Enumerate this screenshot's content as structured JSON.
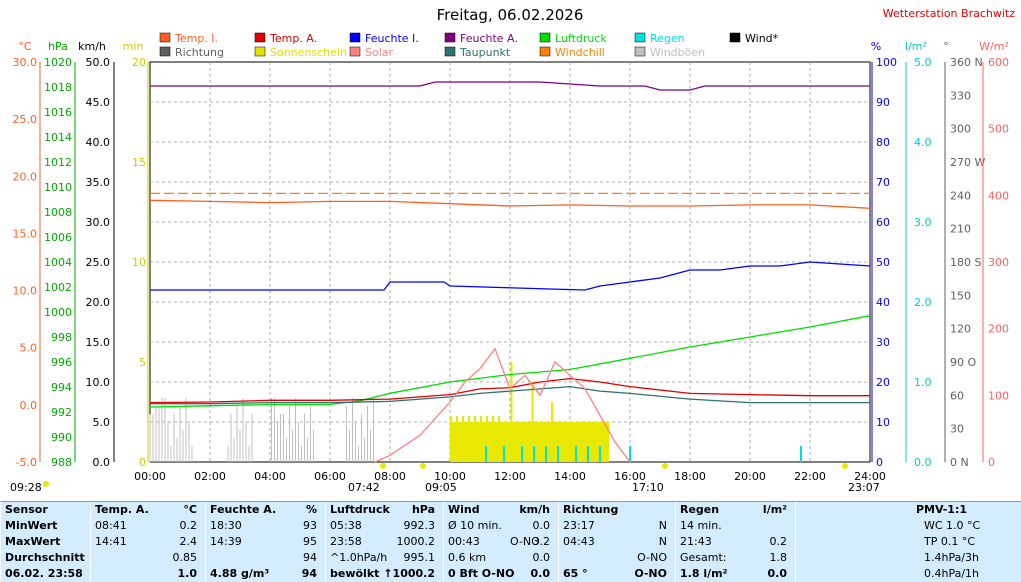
{
  "title": "Freitag, 06.02.2026",
  "station": "Wetterstation Brachwitz",
  "legend": [
    {
      "label": "Temp. I.",
      "color": "#ff6020"
    },
    {
      "label": "Temp. A.",
      "color": "#e00000"
    },
    {
      "label": "Feuchte I.",
      "color": "#0000ff"
    },
    {
      "label": "Feuchte A.",
      "color": "#800080"
    },
    {
      "label": "Luftdruck",
      "color": "#00dd00"
    },
    {
      "label": "Regen",
      "color": "#00e0e0"
    },
    {
      "label": "Wind*",
      "color": "#000000"
    },
    {
      "label": "Richtung",
      "color": "#606060"
    },
    {
      "label": "Sonnenschein",
      "color": "#e0e000"
    },
    {
      "label": "Solar",
      "color": "#ff8080"
    },
    {
      "label": "Taupunkt",
      "color": "#307070"
    },
    {
      "label": "Windchill",
      "color": "#ff8000"
    },
    {
      "label": "Windböen",
      "color": "#c0c0c0"
    }
  ],
  "axis_units": {
    "temp": "°C",
    "press": "hPa",
    "wind": "km/h",
    "sun": "min",
    "hum": "%",
    "rain": "l/m²",
    "dir": "°",
    "solar": "W/m²"
  },
  "chart_data": {
    "type": "line",
    "x_ticks": [
      "00:00",
      "02:00",
      "04:00",
      "06:00",
      "08:00",
      "10:00",
      "12:00",
      "14:00",
      "16:00",
      "18:00",
      "20:00",
      "22:00",
      "24:00"
    ],
    "axes": {
      "temp": {
        "range": [
          -5,
          30
        ],
        "ticks": [
          "30.0",
          "25.0",
          "20.0",
          "15.0",
          "10.0",
          "5.0",
          "0.0",
          "-5.0"
        ]
      },
      "press": {
        "range": [
          988,
          1020
        ],
        "ticks": [
          "1020",
          "1018",
          "1016",
          "1014",
          "1012",
          "1010",
          "1008",
          "1006",
          "1004",
          "1002",
          "1000",
          "998",
          "996",
          "994",
          "992",
          "990",
          "988"
        ]
      },
      "wind": {
        "range": [
          0,
          50
        ],
        "ticks": [
          "50.0",
          "45.0",
          "40.0",
          "35.0",
          "30.0",
          "25.0",
          "20.0",
          "15.0",
          "10.0",
          "5.0",
          "0.0"
        ]
      },
      "sun": {
        "range": [
          0,
          20
        ],
        "ticks": [
          "20",
          "15",
          "10",
          "5",
          "0"
        ]
      },
      "hum": {
        "range": [
          0,
          100
        ],
        "ticks": [
          "100",
          "90",
          "80",
          "70",
          "60",
          "50",
          "40",
          "30",
          "20",
          "10",
          "0"
        ]
      },
      "rain": {
        "range": [
          0,
          5
        ],
        "ticks": [
          "5.0",
          "4.0",
          "3.0",
          "2.0",
          "1.0",
          "0.0"
        ]
      },
      "dir": {
        "range": [
          0,
          360
        ],
        "ticks": [
          "360 N",
          "330",
          "300",
          "270 W",
          "240",
          "210",
          "180 S",
          "150",
          "120",
          "90 O",
          "60",
          "30",
          "0 N"
        ]
      },
      "solar": {
        "range": [
          0,
          600
        ],
        "ticks": [
          "600",
          "500",
          "400",
          "300",
          "200",
          "100",
          "0"
        ]
      }
    },
    "series": [
      {
        "name": "Feuchte A.",
        "axis": "hum",
        "color": "#800080",
        "x": [
          0,
          9,
          9.5,
          12,
          13,
          15,
          16.5,
          17,
          18,
          18.5,
          19,
          20,
          24
        ],
        "y": [
          94,
          94,
          95,
          95,
          95,
          94,
          94,
          93,
          93,
          94,
          94,
          94,
          94
        ]
      },
      {
        "name": "Temp. I.",
        "axis": "temp",
        "color": "#ff6020",
        "x": [
          0,
          2,
          4,
          6,
          8,
          10,
          12,
          14,
          16,
          18,
          20,
          22,
          24
        ],
        "y": [
          17.9,
          17.8,
          17.7,
          17.8,
          17.8,
          17.6,
          17.4,
          17.5,
          17.4,
          17.4,
          17.5,
          17.5,
          17.2
        ]
      },
      {
        "name": "Windchill",
        "axis": "temp",
        "color": "#ff8000",
        "x": [
          0,
          24
        ],
        "y": [
          18.5,
          18.5
        ]
      },
      {
        "name": "Feuchte I.",
        "axis": "hum",
        "color": "#0000ff",
        "x": [
          0,
          7.8,
          8,
          9.8,
          10,
          14.5,
          15,
          16,
          17,
          17.5,
          18,
          19,
          20,
          21,
          22,
          24
        ],
        "y": [
          43,
          43,
          45,
          45,
          44,
          43,
          44,
          45,
          46,
          47,
          48,
          48,
          49,
          49,
          50,
          49
        ]
      },
      {
        "name": "Luftdruck",
        "axis": "press",
        "color": "#00dd00",
        "x": [
          0,
          2,
          4,
          6,
          7,
          8,
          10,
          12,
          14,
          16,
          18,
          20,
          22,
          24
        ],
        "y": [
          992.4,
          992.5,
          992.6,
          992.6,
          992.9,
          993.5,
          994.4,
          995.0,
          995.4,
          996.3,
          997.2,
          998.0,
          998.8,
          999.7
        ]
      },
      {
        "name": "Temp. A.",
        "axis": "temp",
        "color": "#e00000",
        "x": [
          0,
          2,
          4,
          6,
          8,
          10,
          11,
          12,
          13,
          14,
          15,
          16,
          18,
          20,
          22,
          24
        ],
        "y": [
          0.2,
          0.25,
          0.4,
          0.4,
          0.5,
          0.9,
          1.4,
          1.5,
          2.0,
          2.3,
          2.0,
          1.6,
          1.0,
          0.9,
          0.8,
          0.8
        ]
      },
      {
        "name": "Taupunkt",
        "axis": "temp",
        "color": "#307070",
        "x": [
          0,
          2,
          4,
          6,
          8,
          10,
          11,
          12,
          13,
          14,
          15,
          16,
          18,
          20,
          22,
          24
        ],
        "y": [
          0.1,
          0.1,
          0.2,
          0.2,
          0.3,
          0.7,
          1.0,
          1.2,
          1.4,
          1.6,
          1.2,
          1.0,
          0.5,
          0.2,
          0.2,
          0.2
        ]
      },
      {
        "name": "Solar",
        "axis": "solar",
        "color": "#ff8080",
        "x": [
          7.5,
          8,
          9,
          10,
          10.5,
          11,
          11.5,
          12,
          12.5,
          13,
          13.5,
          14,
          14.5,
          15,
          15.5,
          16
        ],
        "y": [
          0,
          10,
          40,
          90,
          120,
          140,
          170,
          110,
          130,
          100,
          150,
          130,
          110,
          70,
          30,
          0
        ]
      }
    ],
    "sunshine_interval": [
      10,
      15.3
    ],
    "rain_ticks": [
      11.2,
      11.8,
      12.4,
      12.8,
      13.2,
      13.6,
      14.2,
      14.6,
      15.0,
      16.0,
      21.7
    ]
  },
  "time_markers": {
    "left": "09:28",
    "sunrise": "07:42",
    "s2": "09:05",
    "sunset": "17:10",
    "right": "23:07"
  },
  "table": {
    "sensor": {
      "head": "Sensor",
      "rows": [
        "MinWert",
        "MaxWert",
        "Durchschnitt",
        "06.02. 23:58"
      ]
    },
    "temp": {
      "head": "Temp. A.",
      "unit": "°C",
      "rows": [
        [
          "08:41",
          "0.2"
        ],
        [
          "14:41",
          "2.4"
        ],
        [
          "",
          "0.85"
        ],
        [
          "",
          "1.0"
        ]
      ]
    },
    "hum": {
      "head": "Feuchte A.",
      "unit": "%",
      "rows": [
        [
          "18:30",
          "93"
        ],
        [
          "14:39",
          "95"
        ],
        [
          "",
          "94"
        ],
        [
          "4.88 g/m³",
          "94"
        ]
      ]
    },
    "press": {
      "head": "Luftdruck",
      "unit": "hPa",
      "rows": [
        [
          "05:38",
          "992.3"
        ],
        [
          "23:58",
          "1000.2"
        ],
        [
          "^1.0hPa/h",
          "995.1"
        ],
        [
          "bewölkt",
          "↑1000.2"
        ]
      ]
    },
    "wind": {
      "head": "Wind",
      "unit": "km/h",
      "rows": [
        [
          "Ø 10 min.",
          "",
          "0.0"
        ],
        [
          "00:43",
          "O-NO",
          "3.2"
        ],
        [
          "0.6 km",
          "",
          "0.0"
        ],
        [
          "0 Bft O-NO",
          "",
          "0.0"
        ]
      ]
    },
    "dir": {
      "head": "Richtung",
      "rows": [
        [
          "23:17",
          "N"
        ],
        [
          "04:43",
          "N"
        ],
        [
          "",
          "O-NO"
        ],
        [
          "65 °",
          "O-NO"
        ]
      ]
    },
    "rain": {
      "head": "Regen",
      "unit": "l/m²",
      "rows": [
        [
          "14 min.",
          ""
        ],
        [
          "21:43",
          "0.2"
        ],
        [
          "Gesamt:",
          "1.8"
        ],
        [
          "1.8 l/m²",
          "0.0"
        ]
      ]
    },
    "pmv": {
      "head": "PMV-1:1",
      "rows": [
        "WC 1.0 °C",
        "TP 0.1 °C",
        "1.4hPa/3h",
        "0.4hPa/1h"
      ]
    }
  }
}
